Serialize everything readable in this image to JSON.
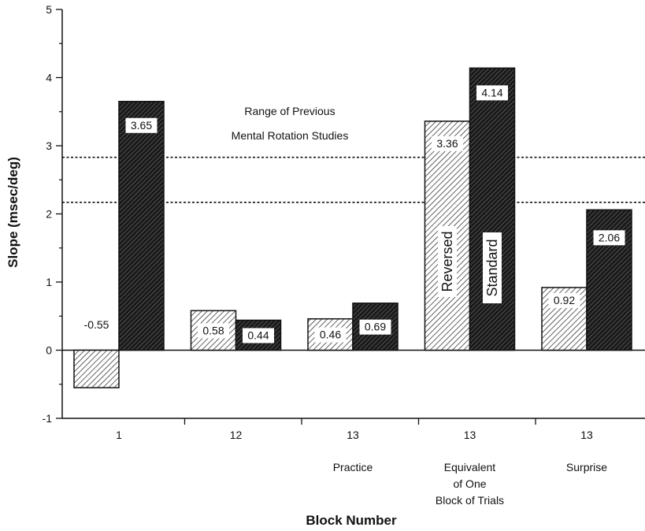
{
  "chart_data": {
    "type": "bar",
    "title": "",
    "xlabel": "Block Number",
    "ylabel": "Slope  (msec/deg)",
    "ylim": [
      -1,
      5
    ],
    "yticks": [
      -1,
      0,
      1,
      2,
      3,
      4,
      5
    ],
    "grid": false,
    "categories": [
      {
        "label": "1",
        "sublabel": []
      },
      {
        "label": "12",
        "sublabel": []
      },
      {
        "label": "13",
        "sublabel": [
          "Practice"
        ]
      },
      {
        "label": "13",
        "sublabel": [
          "Equivalent",
          "of One",
          "Block of Trials"
        ]
      },
      {
        "label": "13",
        "sublabel": [
          "Surprise"
        ]
      }
    ],
    "series": [
      {
        "name": "Reversed",
        "fill": "light-hatch",
        "values": [
          -0.55,
          0.58,
          0.46,
          3.36,
          0.92
        ],
        "labels": [
          "-0.55",
          "0.58",
          "0.46",
          "3.36",
          "0.92"
        ]
      },
      {
        "name": "Standard",
        "fill": "dark-hatch",
        "values": [
          3.65,
          0.44,
          0.69,
          4.14,
          2.06
        ],
        "labels": [
          "3.65",
          "0.44",
          "0.69",
          "4.14",
          "2.06"
        ]
      }
    ],
    "reference_lines": [
      2.83,
      2.17
    ],
    "reference_label": [
      "Range of Previous",
      "Mental Rotation Studies"
    ],
    "colors": {
      "ink": "#111111",
      "background": "#ffffff"
    }
  }
}
